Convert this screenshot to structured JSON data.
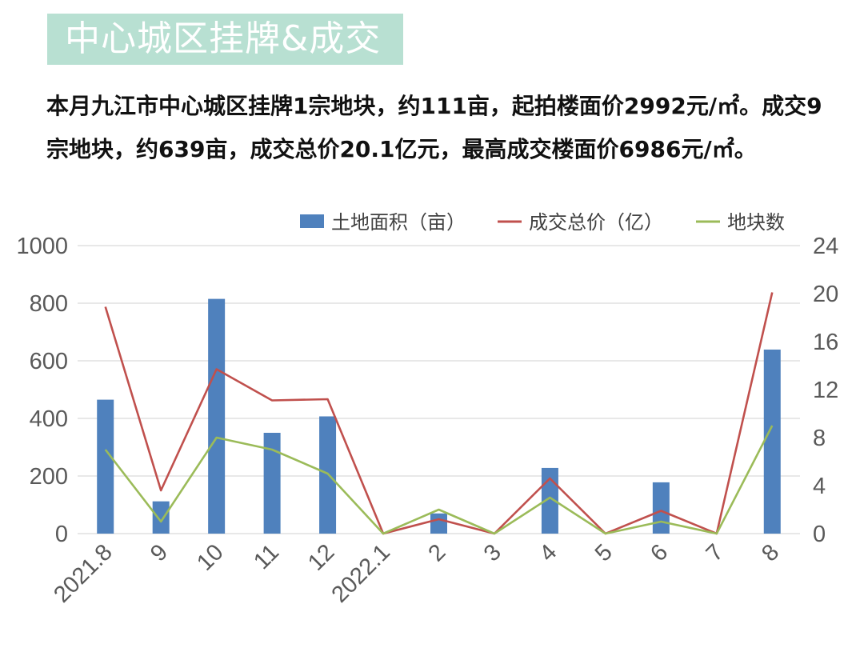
{
  "header": {
    "title": "中心城区挂牌&成交"
  },
  "summary": {
    "text": "本月九江市中心城区挂牌1宗地块，约111亩，起拍楼面价2992元/㎡。成交9宗地块，约639亩，成交总价20.1亿元，最高成交楼面价6986元/㎡。"
  },
  "colors": {
    "bar": "#4f81bd",
    "total_price_line": "#c0504d",
    "parcel_count_line": "#9bbb59",
    "grid": "#d9d9d9",
    "banner": "#b8e0d2"
  },
  "chart_data": {
    "type": "bar",
    "categories": [
      "2021.8",
      "9",
      "10",
      "11",
      "12",
      "2022.1",
      "2",
      "3",
      "4",
      "5",
      "6",
      "7",
      "8"
    ],
    "series": [
      {
        "name": "土地面积（亩）",
        "type": "bar",
        "axis": "left",
        "values": [
          465,
          112,
          815,
          350,
          407,
          0,
          70,
          0,
          228,
          0,
          178,
          0,
          639
        ]
      },
      {
        "name": "成交总价（亿）",
        "type": "line",
        "axis": "right",
        "values": [
          18.9,
          3.6,
          13.7,
          11.1,
          11.2,
          0,
          1.2,
          0,
          4.6,
          0,
          1.9,
          0,
          20.1
        ]
      },
      {
        "name": "地块数",
        "type": "line",
        "axis": "right",
        "values": [
          7,
          1,
          8,
          7,
          5,
          0,
          2,
          0,
          3,
          0,
          1,
          0,
          9
        ]
      }
    ],
    "ylim_left": [
      0,
      1000
    ],
    "yticks_left": [
      0,
      200,
      400,
      600,
      800,
      1000
    ],
    "ylim_right": [
      0,
      24
    ],
    "yticks_right": [
      0,
      4,
      8,
      12,
      16,
      20,
      24
    ],
    "grid": true,
    "legend_position": "top-right"
  }
}
